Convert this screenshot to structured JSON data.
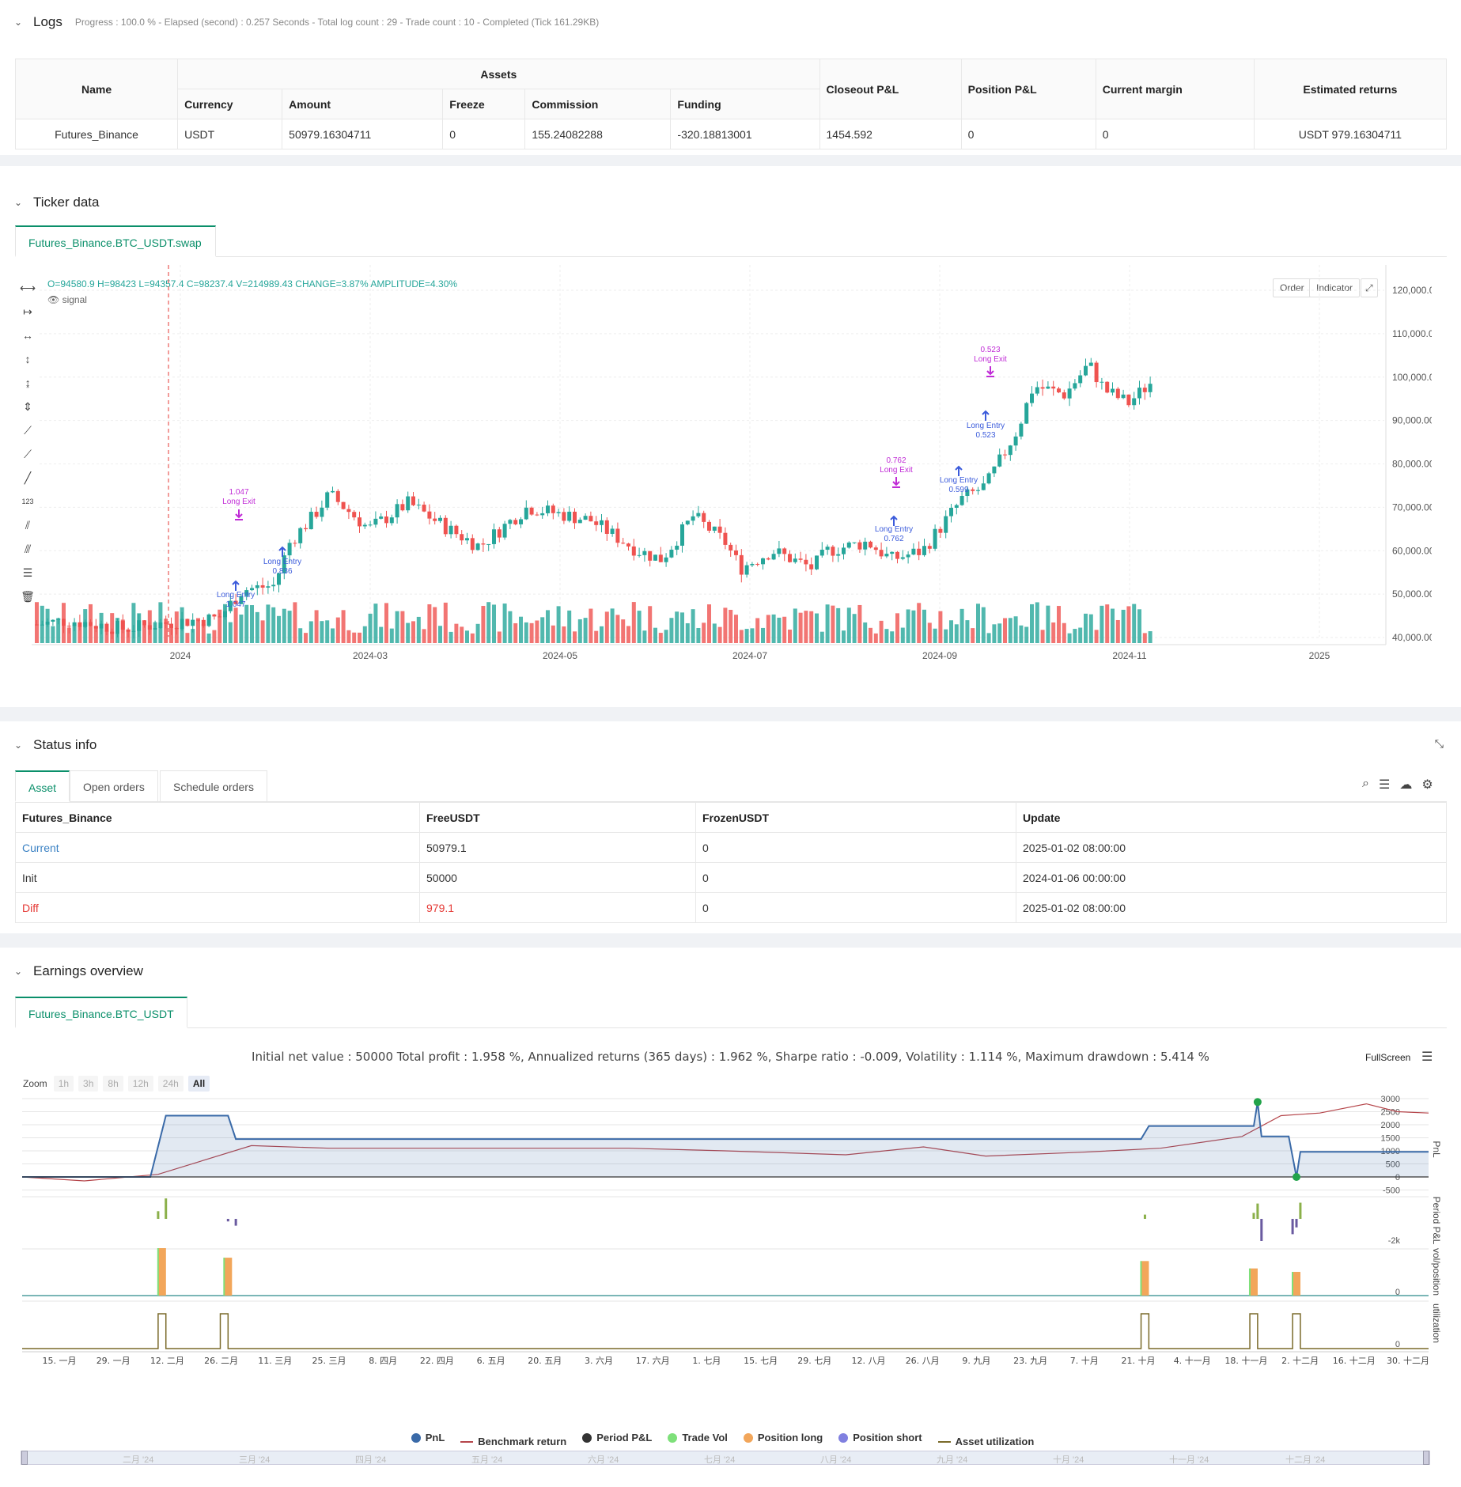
{
  "logs": {
    "title": "Logs",
    "summary": "Progress : 100.0 % - Elapsed (second) : 0.257  Seconds - Total log count : 29 - Trade count : 10 - Completed (Tick 161.29KB)"
  },
  "assets_table": {
    "name_header": "Name",
    "assets_header": "Assets",
    "sub_headers": [
      "Currency",
      "Amount",
      "Freeze",
      "Commission",
      "Funding"
    ],
    "other_headers": [
      "Closeout P&L",
      "Position P&L",
      "Current margin",
      "Estimated returns"
    ],
    "row": {
      "name": "Futures_Binance",
      "currency": "USDT",
      "amount": "50979.16304711",
      "freeze": "0",
      "commission": "155.24082288",
      "funding": "-320.18813001",
      "closeout_pnl": "1454.592",
      "position_pnl": "0",
      "current_margin": "0",
      "estimated_returns": "USDT 979.16304711"
    }
  },
  "ticker": {
    "title": "Ticker data",
    "tab": "Futures_Binance.BTC_USDT.swap",
    "ohlc_line": "O=94580.9 H=98423 L=94357.4 C=98237.4 V=214989.43 CHANGE=3.87% AMPLITUDE=4.30%",
    "signal_label": "signal",
    "buttons": [
      "Order",
      "Indicator"
    ],
    "y_ticks": [
      "120,000.00",
      "110,000.00",
      "100,000.00",
      "90,000.00",
      "80,000.00",
      "70,000.00",
      "60,000.00",
      "50,000.00",
      "40,000.00"
    ],
    "x_ticks": [
      "2024",
      "2024-03",
      "2024-05",
      "2024-07",
      "2024-09",
      "2024-11",
      "2025"
    ],
    "annotations": [
      {
        "text": "1.047",
        "kind": "exit-value"
      },
      {
        "text": "Long Exit",
        "kind": "exit"
      },
      {
        "text": "Long Entry",
        "kind": "entry"
      },
      {
        "text": "1.047",
        "kind": "entry-value"
      },
      {
        "text": "Long Entry",
        "kind": "entry"
      },
      {
        "text": "0.836",
        "kind": "entry-value"
      },
      {
        "text": "0.762",
        "kind": "exit-value"
      },
      {
        "text": "Long Exit",
        "kind": "exit"
      },
      {
        "text": "Long Entry",
        "kind": "entry"
      },
      {
        "text": "0.762",
        "kind": "entry-value"
      },
      {
        "text": "Long Entry",
        "kind": "entry"
      },
      {
        "text": "0.599",
        "kind": "entry-value"
      },
      {
        "text": "0.523",
        "kind": "exit-value"
      },
      {
        "text": "Long Exit",
        "kind": "exit"
      },
      {
        "text": "Long Entry",
        "kind": "entry"
      },
      {
        "text": "0.523",
        "kind": "entry-value"
      }
    ],
    "colors": {
      "up": "#26a69a",
      "down": "#ef5350",
      "entry": "#3b5bdb",
      "exit": "#c02bd6"
    }
  },
  "status": {
    "title": "Status info",
    "tabs": [
      "Asset",
      "Open orders",
      "Schedule orders"
    ],
    "headers": [
      "Futures_Binance",
      "FreeUSDT",
      "FrozenUSDT",
      "Update"
    ],
    "rows": [
      {
        "label": "Current",
        "free": "50979.1",
        "frozen": "0",
        "update": "2025-01-02 08:00:00"
      },
      {
        "label": "Init",
        "free": "50000",
        "frozen": "0",
        "update": "2024-01-06 00:00:00"
      },
      {
        "label": "Diff",
        "free": "979.1",
        "frozen": "0",
        "update": "2025-01-02 08:00:00"
      }
    ]
  },
  "earnings": {
    "title": "Earnings overview",
    "tab": "Futures_Binance.BTC_USDT",
    "summary": "Initial net value : 50000  Total profit : 1.958 %, Annualized returns (365 days) : 1.962 %, Sharpe ratio : -0.009, Volatility : 1.114 %, Maximum drawdown : 5.414 %",
    "fullscreen": "FullScreen",
    "zoom_label": "Zoom",
    "zoom_buttons": [
      "1h",
      "3h",
      "8h",
      "12h",
      "24h",
      "All"
    ],
    "pnl_y_ticks": [
      "3000",
      "2500",
      "2000",
      "1500",
      "1000",
      "500",
      "0",
      "-500"
    ],
    "period_y_ticks": [
      "-2k"
    ],
    "vol_y_ticks": [
      "0"
    ],
    "util_y_ticks": [
      "0"
    ],
    "axis_titles": [
      "PnL",
      "Period P&L",
      "vol/position",
      "utilization"
    ],
    "x_ticks": [
      "15. 一月",
      "29. 一月",
      "12. 二月",
      "26. 二月",
      "11. 三月",
      "25. 三月",
      "8. 四月",
      "22. 四月",
      "6. 五月",
      "20. 五月",
      "3. 六月",
      "17. 六月",
      "1. 七月",
      "15. 七月",
      "29. 七月",
      "12. 八月",
      "26. 八月",
      "9. 九月",
      "23. 九月",
      "7. 十月",
      "21. 十月",
      "4. 十一月",
      "18. 十一月",
      "2. 十二月",
      "16. 十二月",
      "30. 十二月"
    ],
    "navigator_ticks": [
      "二月 '24",
      "三月 '24",
      "四月 '24",
      "五月 '24",
      "六月 '24",
      "七月 '24",
      "八月 '24",
      "九月 '24",
      "十月 '24",
      "十一月 '24",
      "十二月 '24"
    ],
    "legend": [
      {
        "label": "PnL",
        "color": "#3a6aa8",
        "shape": "dot"
      },
      {
        "label": "Benchmark return",
        "color": "#b5454a",
        "shape": "line"
      },
      {
        "label": "Period P&L",
        "color": "#333333",
        "shape": "dot"
      },
      {
        "label": "Trade Vol",
        "color": "#7ee07a",
        "shape": "dot"
      },
      {
        "label": "Position long",
        "color": "#f2a65a",
        "shape": "dot"
      },
      {
        "label": "Position short",
        "color": "#8080e0",
        "shape": "dot"
      },
      {
        "label": "Asset utilization",
        "color": "#7a6a2a",
        "shape": "line"
      }
    ]
  },
  "chart_data": [
    {
      "type": "line",
      "title": "",
      "ylabel": "PnL",
      "ylim": [
        -500,
        3000
      ],
      "series": [
        {
          "name": "PnL",
          "x": [
            "2024-01-06",
            "2024-02-08",
            "2024-02-12",
            "2024-02-28",
            "2024-03-01",
            "2024-10-20",
            "2024-10-22",
            "2024-11-18",
            "2024-11-19",
            "2024-11-20",
            "2024-11-27",
            "2024-11-29",
            "2024-11-30",
            "2025-01-02"
          ],
          "values": [
            0,
            0,
            2350,
            2350,
            1450,
            1450,
            1950,
            1950,
            2870,
            1550,
            1550,
            0,
            960,
            960
          ]
        },
        {
          "name": "Benchmark return",
          "x": [
            "2024-01-06",
            "2024-01-22",
            "2024-02-10",
            "2024-03-05",
            "2024-03-25",
            "2024-04-15",
            "2024-05-10",
            "2024-06-10",
            "2024-07-05",
            "2024-08-05",
            "2024-08-25",
            "2024-09-10",
            "2024-10-05",
            "2024-10-25",
            "2024-11-15",
            "2024-11-25",
            "2024-12-05",
            "2024-12-17",
            "2024-12-25",
            "2025-01-02"
          ],
          "values": [
            0,
            -150,
            100,
            1200,
            1100,
            1100,
            1100,
            1100,
            1000,
            850,
            1150,
            800,
            950,
            1100,
            1550,
            2350,
            2450,
            2800,
            2500,
            2450
          ]
        }
      ]
    },
    {
      "type": "bar",
      "title": "",
      "ylabel": "Period P&L",
      "series": [
        {
          "name": "Period P&L",
          "x": [
            "2024-02-10",
            "2024-02-12",
            "2024-02-28",
            "2024-03-01",
            "2024-10-21",
            "2024-11-18",
            "2024-11-19",
            "2024-11-20",
            "2024-11-28",
            "2024-11-29",
            "2024-11-30"
          ],
          "values": [
            450,
            1200,
            -150,
            -400,
            250,
            350,
            900,
            -1300,
            -900,
            -500,
            950
          ]
        }
      ]
    },
    {
      "type": "bar",
      "title": "",
      "ylabel": "vol/position",
      "series": [
        {
          "name": "Position long",
          "x": [
            "2024-02-11",
            "2024-02-28",
            "2024-10-21",
            "2024-11-18",
            "2024-11-29"
          ],
          "values": [
            1.047,
            0.836,
            0.762,
            0.599,
            0.523
          ]
        }
      ]
    },
    {
      "type": "line",
      "title": "",
      "ylabel": "utilization",
      "series": [
        {
          "name": "Asset utilization",
          "x": [
            "2024-02-10",
            "2024-02-12",
            "2024-02-26",
            "2024-02-28",
            "2024-10-20",
            "2024-10-22",
            "2024-11-17",
            "2024-11-19",
            "2024-11-28",
            "2024-11-30"
          ],
          "values": [
            1,
            1,
            1,
            1,
            1,
            1,
            1,
            1,
            1,
            1
          ]
        }
      ]
    }
  ]
}
